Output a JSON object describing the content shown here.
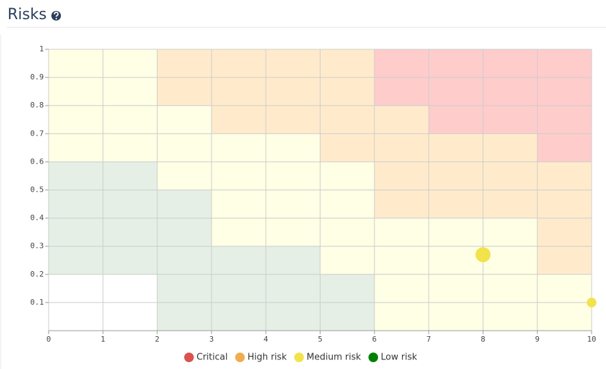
{
  "header": {
    "title": "Risks"
  },
  "chart_data": {
    "type": "scatter",
    "xlim": [
      0,
      10
    ],
    "ylim": [
      0,
      1
    ],
    "xticks": [
      0,
      1,
      2,
      3,
      4,
      5,
      6,
      7,
      8,
      9,
      10
    ],
    "yticks": [
      0.1,
      0.2,
      0.3,
      0.4,
      0.5,
      0.6,
      0.7,
      0.8,
      0.9,
      1
    ],
    "grid": true,
    "levels": [
      {
        "name": "Critical",
        "color": "#d9534f",
        "zone_color": "#ffcccc"
      },
      {
        "name": "High risk",
        "color": "#f0ad4e",
        "zone_color": "#ffebcc"
      },
      {
        "name": "Medium risk",
        "color": "#f2e24b",
        "zone_color": "#ffffe5"
      },
      {
        "name": "Low risk",
        "color": "#008000",
        "zone_color": "#e5efe5"
      }
    ],
    "zones": [
      {
        "level": 2,
        "x": [
          0,
          2
        ],
        "y": [
          0.6,
          1
        ]
      },
      {
        "level": 2,
        "x": [
          2,
          3
        ],
        "y": [
          0.5,
          0.8
        ]
      },
      {
        "level": 2,
        "x": [
          3,
          5
        ],
        "y": [
          0.3,
          0.7
        ]
      },
      {
        "level": 2,
        "x": [
          5,
          6
        ],
        "y": [
          0.2,
          0.6
        ]
      },
      {
        "level": 2,
        "x": [
          6,
          9
        ],
        "y": [
          0,
          0.4
        ]
      },
      {
        "level": 2,
        "x": [
          9,
          10
        ],
        "y": [
          0,
          0.2
        ]
      },
      {
        "level": 1,
        "x": [
          2,
          6
        ],
        "y": [
          0.8,
          1
        ]
      },
      {
        "level": 1,
        "x": [
          3,
          7
        ],
        "y": [
          0.7,
          0.8
        ]
      },
      {
        "level": 1,
        "x": [
          5,
          9
        ],
        "y": [
          0.6,
          0.7
        ]
      },
      {
        "level": 1,
        "x": [
          6,
          10
        ],
        "y": [
          0.4,
          0.6
        ]
      },
      {
        "level": 1,
        "x": [
          9,
          10
        ],
        "y": [
          0.2,
          0.4
        ]
      },
      {
        "level": 0,
        "x": [
          6,
          10
        ],
        "y": [
          0.8,
          1
        ]
      },
      {
        "level": 0,
        "x": [
          7,
          10
        ],
        "y": [
          0.7,
          0.8
        ]
      },
      {
        "level": 0,
        "x": [
          9,
          10
        ],
        "y": [
          0.6,
          0.7
        ]
      },
      {
        "level": 3,
        "x": [
          0,
          2
        ],
        "y": [
          0.2,
          0.6
        ]
      },
      {
        "level": 3,
        "x": [
          2,
          3
        ],
        "y": [
          0,
          0.5
        ]
      },
      {
        "level": 3,
        "x": [
          3,
          5
        ],
        "y": [
          0,
          0.3
        ]
      },
      {
        "level": 3,
        "x": [
          5,
          6
        ],
        "y": [
          0,
          0.2
        ]
      }
    ],
    "series": [
      {
        "color": "#f2e24b",
        "x": [
          8,
          10
        ],
        "values": [
          0.27,
          0.1
        ],
        "sizes": [
          11,
          7
        ]
      }
    ]
  }
}
